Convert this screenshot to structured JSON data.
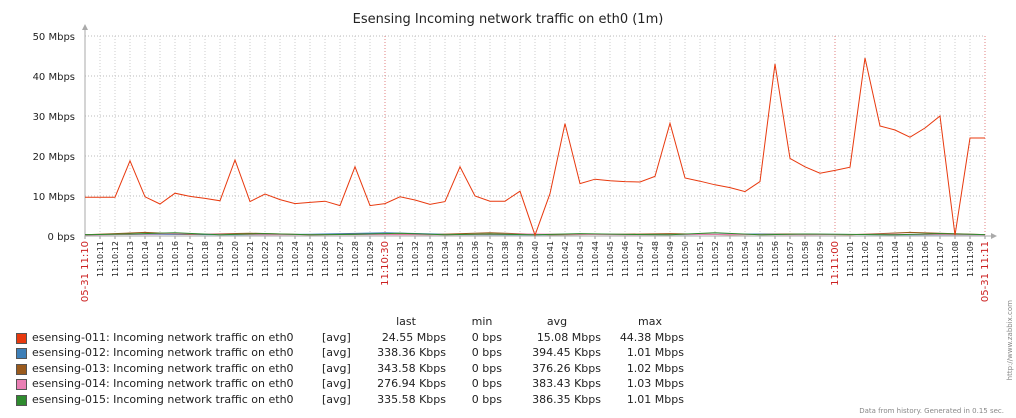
{
  "chart_data": {
    "type": "line",
    "title": "Esensing Incoming network traffic on eth0 (1m)",
    "y_ticks": [
      "0 bps",
      "10 Mbps",
      "20 Mbps",
      "30 Mbps",
      "40 Mbps",
      "50 Mbps"
    ],
    "ylim": [
      0,
      50
    ],
    "y_unit": "Mbps",
    "grid": true,
    "x_start_label": "05-31 11:10",
    "x_end_label": "05-31 11:11",
    "x_labels": [
      "11:10:11",
      "11:10:12",
      "11:10:13",
      "11:10:14",
      "11:10:15",
      "11:10:16",
      "11:10:17",
      "11:10:18",
      "11:10:19",
      "11:10:20",
      "11:10:21",
      "11:10:22",
      "11:10:23",
      "11:10:24",
      "11:10:25",
      "11:10:26",
      "11:10:27",
      "11:10:28",
      "11:10:29",
      "11:10:30",
      "11:10:31",
      "11:10:32",
      "11:10:33",
      "11:10:34",
      "11:10:35",
      "11:10:36",
      "11:10:37",
      "11:10:38",
      "11:10:39",
      "11:10:40",
      "11:10:41",
      "11:10:42",
      "11:10:43",
      "11:10:44",
      "11:10:45",
      "11:10:46",
      "11:10:47",
      "11:10:48",
      "11:10:49",
      "11:10:50",
      "11:10:51",
      "11:10:52",
      "11:10:53",
      "11:10:54",
      "11:10:55",
      "11:10:56",
      "11:10:57",
      "11:10:58",
      "11:10:59",
      "11:11:00",
      "11:11:01",
      "11:11:02",
      "11:11:03",
      "11:11:04",
      "11:11:05",
      "11:11:06",
      "11:11:07",
      "11:11:08",
      "11:11:09"
    ],
    "x_red_labels": [
      "11:10:30",
      "11:11:00"
    ],
    "series": [
      {
        "name": "esensing-011: Incoming network traffic on eth0",
        "color": "#e8390e",
        "x_seconds": [
          10,
          11,
          12,
          13,
          14,
          15,
          16,
          17,
          18,
          19,
          20,
          21,
          22,
          23,
          24,
          25,
          26,
          27,
          28,
          29,
          30,
          31,
          32,
          33,
          34,
          35,
          36,
          37,
          38,
          39,
          40,
          41,
          42,
          43,
          44,
          45,
          46,
          47,
          48,
          49,
          50,
          51,
          52,
          53,
          54,
          55,
          56,
          57,
          58,
          59,
          60,
          61,
          62,
          63,
          64,
          65,
          66,
          67,
          68,
          69,
          70
        ],
        "values": [
          9.7,
          9.7,
          9.7,
          18.8,
          9.8,
          8.0,
          10.7,
          9.9,
          9.4,
          8.8,
          19.0,
          8.6,
          10.5,
          9.1,
          8.1,
          8.4,
          8.7,
          7.6,
          17.3,
          7.6,
          8.1,
          9.8,
          9.0,
          7.9,
          8.6,
          17.3,
          10.0,
          8.7,
          8.7,
          11.2,
          0.2,
          10.6,
          28.1,
          13.1,
          14.2,
          13.8,
          13.6,
          13.5,
          14.9,
          28.2,
          14.5,
          13.7,
          12.8,
          12.1,
          11.1,
          13.6,
          43.0,
          19.4,
          17.3,
          15.7,
          16.4,
          17.2,
          44.5,
          27.5,
          26.5,
          24.7,
          27.0,
          30.0,
          0.2,
          24.5,
          24.5
        ]
      },
      {
        "name": "esensing-012: Incoming network traffic on eth0",
        "color": "#3d7fb8",
        "x_seconds": [
          10,
          15,
          20,
          25,
          30,
          35,
          40,
          45,
          50,
          55,
          60,
          65,
          70
        ],
        "values": [
          0.35,
          0.4,
          0.3,
          0.45,
          0.8,
          0.35,
          0.3,
          0.4,
          0.35,
          0.5,
          0.4,
          0.3,
          0.35
        ]
      },
      {
        "name": "esensing-013: Incoming network traffic on eth0",
        "color": "#9a5a1c",
        "x_seconds": [
          10,
          14,
          17,
          21,
          25,
          29,
          33,
          37,
          41,
          45,
          49,
          53,
          57,
          61,
          65,
          70
        ],
        "values": [
          0.3,
          0.9,
          0.4,
          0.7,
          0.3,
          0.5,
          0.35,
          0.8,
          0.3,
          0.4,
          0.6,
          0.3,
          0.5,
          0.3,
          0.9,
          0.35
        ]
      },
      {
        "name": "esensing-014: Incoming network traffic on eth0",
        "color": "#e97fb4",
        "x_seconds": [
          10,
          16,
          22,
          28,
          34,
          40,
          46,
          52,
          58,
          64,
          70
        ],
        "values": [
          0.25,
          0.6,
          0.3,
          0.35,
          0.3,
          0.5,
          0.3,
          0.4,
          0.3,
          0.45,
          0.3
        ]
      },
      {
        "name": "esensing-015: Incoming network traffic on eth0",
        "color": "#2e8b2e",
        "x_seconds": [
          10,
          13,
          16,
          19,
          22,
          25,
          28,
          31,
          34,
          37,
          40,
          43,
          46,
          49,
          52,
          55,
          58,
          61,
          64,
          67,
          70
        ],
        "values": [
          0.3,
          0.5,
          0.8,
          0.3,
          0.6,
          0.3,
          0.4,
          0.7,
          0.3,
          0.5,
          0.3,
          0.6,
          0.4,
          0.3,
          0.8,
          0.3,
          0.5,
          0.4,
          0.3,
          0.6,
          0.35
        ]
      }
    ]
  },
  "legend": {
    "headers": {
      "last": "last",
      "min": "min",
      "avg": "avg",
      "max": "max"
    },
    "rows": [
      {
        "name": "esensing-011: Incoming network traffic on eth0",
        "fn": "[avg]",
        "last": "24.55 Mbps",
        "min": "0 bps",
        "avg": "15.08 Mbps",
        "max": "44.38 Mbps",
        "color": "#e8390e"
      },
      {
        "name": "esensing-012: Incoming network traffic on eth0",
        "fn": "[avg]",
        "last": "338.36 Kbps",
        "min": "0 bps",
        "avg": "394.45 Kbps",
        "max": "1.01 Mbps",
        "color": "#3d7fb8"
      },
      {
        "name": "esensing-013: Incoming network traffic on eth0",
        "fn": "[avg]",
        "last": "343.58 Kbps",
        "min": "0 bps",
        "avg": "376.26 Kbps",
        "max": "1.02 Mbps",
        "color": "#9a5a1c"
      },
      {
        "name": "esensing-014: Incoming network traffic on eth0",
        "fn": "[avg]",
        "last": "276.94 Kbps",
        "min": "0 bps",
        "avg": "383.43 Kbps",
        "max": "1.03 Mbps",
        "color": "#e97fb4"
      },
      {
        "name": "esensing-015: Incoming network traffic on eth0",
        "fn": "[avg]",
        "last": "335.58 Kbps",
        "min": "0 bps",
        "avg": "386.35 Kbps",
        "max": "1.01 Mbps",
        "color": "#2e8b2e"
      }
    ]
  },
  "footer": "Data from history. Generated in 0.15 sec.",
  "watermark": "http://www.zabbix.com"
}
